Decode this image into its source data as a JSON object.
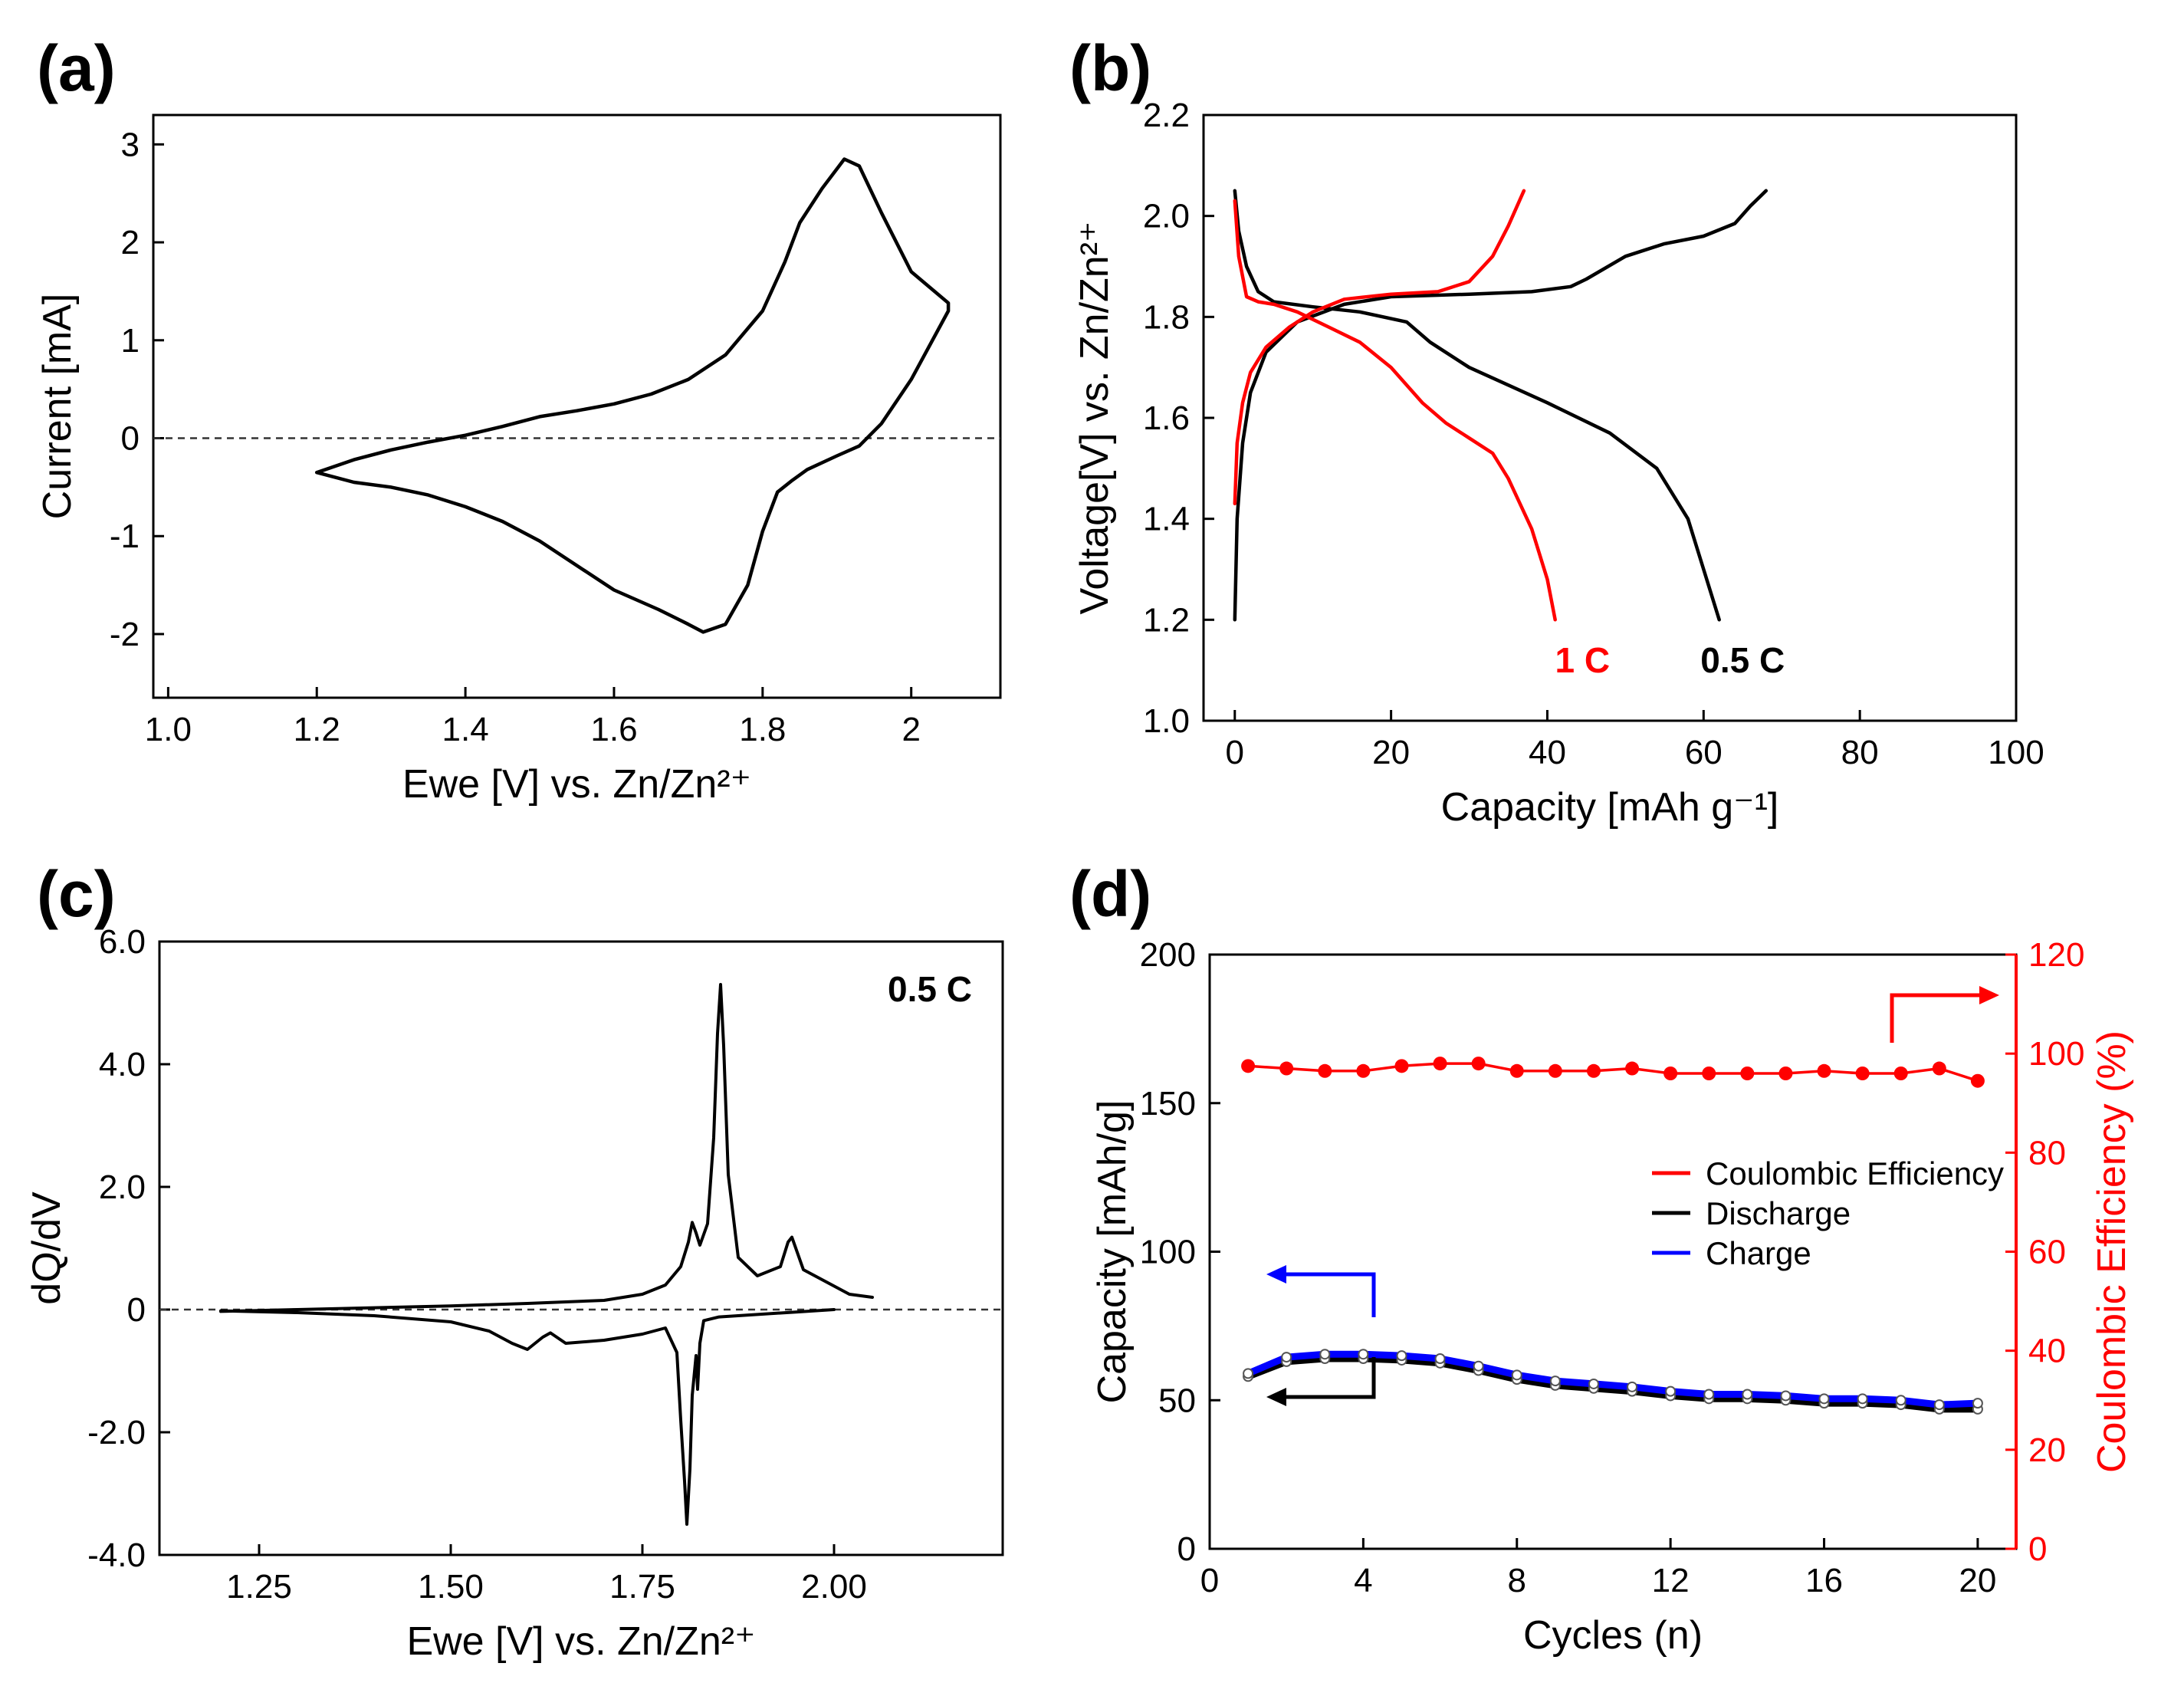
{
  "colors": {
    "black": "#000000",
    "red": "#ff0000",
    "blue": "#0000ff",
    "grid_zero": "#333333"
  },
  "panels": {
    "a": {
      "label": "(a)"
    },
    "b": {
      "label": "(b)"
    },
    "c": {
      "label": "(c)"
    },
    "d": {
      "label": "(d)"
    }
  },
  "chart_data": [
    {
      "id": "a",
      "type": "line",
      "xlabel": "Ewe [V] vs. Zn/Zn²⁺",
      "ylabel": "Current   [mA]",
      "xlim": [
        0.98,
        2.12
      ],
      "ylim": [
        -2.65,
        3.3
      ],
      "xticks": [
        1.0,
        1.2,
        1.4,
        1.6,
        1.8,
        2.0
      ],
      "xtick_labels": [
        "1.0",
        "1.2",
        "1.4",
        "1.6",
        "1.8",
        "2"
      ],
      "yticks": [
        -2,
        -1,
        0,
        1,
        2,
        3
      ],
      "ytick_labels": [
        "-2",
        "-1",
        "0",
        "1",
        "2",
        "3"
      ],
      "zero_line": true,
      "series": [
        {
          "color": "black",
          "x": [
            1.2,
            1.25,
            1.3,
            1.35,
            1.4,
            1.45,
            1.5,
            1.55,
            1.6,
            1.65,
            1.7,
            1.75,
            1.8,
            1.83,
            1.85,
            1.88,
            1.91,
            1.93,
            1.96,
            2.0,
            2.05,
            2.05,
            2.0,
            1.96,
            1.93,
            1.9,
            1.86,
            1.84,
            1.82,
            1.8,
            1.78,
            1.75,
            1.72,
            1.7,
            1.66,
            1.6,
            1.55,
            1.5,
            1.45,
            1.4,
            1.35,
            1.3,
            1.25,
            1.2
          ],
          "y": [
            -0.35,
            -0.22,
            -0.12,
            -0.04,
            0.03,
            0.12,
            0.22,
            0.28,
            0.35,
            0.45,
            0.6,
            0.85,
            1.3,
            1.8,
            2.2,
            2.55,
            2.85,
            2.78,
            2.3,
            1.7,
            1.38,
            1.3,
            0.6,
            0.15,
            -0.08,
            -0.18,
            -0.32,
            -0.43,
            -0.55,
            -0.95,
            -1.5,
            -1.9,
            -1.98,
            -1.9,
            -1.75,
            -1.55,
            -1.3,
            -1.05,
            -0.85,
            -0.7,
            -0.58,
            -0.5,
            -0.45,
            -0.35
          ]
        }
      ]
    },
    {
      "id": "b",
      "type": "line",
      "xlabel": "Capacity [mAh g⁻¹]",
      "ylabel": "Voltage[V]  vs. Zn/Zn²⁺",
      "xlim": [
        -4,
        100
      ],
      "ylim": [
        1.0,
        2.2
      ],
      "xticks": [
        0,
        20,
        40,
        60,
        80,
        100
      ],
      "xtick_labels": [
        "0",
        "20",
        "40",
        "60",
        "80",
        "100"
      ],
      "yticks": [
        1.0,
        1.2,
        1.4,
        1.6,
        1.8,
        2.0,
        2.2
      ],
      "ytick_labels": [
        "1.0",
        "1.2",
        "1.4",
        "1.6",
        "1.8",
        "2.0",
        "2.2"
      ],
      "series": [
        {
          "name": "0.5 C",
          "color": "black",
          "x": [
            0,
            0.3,
            1,
            2,
            4,
            8,
            14,
            20,
            30,
            38,
            43,
            45,
            50,
            55,
            60,
            64,
            66,
            68
          ],
          "y": [
            1.2,
            1.4,
            1.55,
            1.65,
            1.73,
            1.79,
            1.825,
            1.84,
            1.845,
            1.85,
            1.86,
            1.875,
            1.92,
            1.945,
            1.96,
            1.985,
            2.02,
            2.05
          ]
        },
        {
          "name": "0.5 C",
          "color": "black",
          "x": [
            0,
            0.5,
            1.5,
            3,
            5,
            10,
            16,
            22,
            25,
            30,
            40,
            48,
            54,
            58,
            60,
            62
          ],
          "y": [
            2.05,
            1.97,
            1.9,
            1.85,
            1.83,
            1.82,
            1.81,
            1.79,
            1.75,
            1.7,
            1.63,
            1.57,
            1.5,
            1.4,
            1.3,
            1.2
          ]
        },
        {
          "name": "1 C",
          "color": "red",
          "x": [
            0,
            0.3,
            1,
            2,
            4,
            7,
            10,
            14,
            20,
            26,
            30,
            33,
            35,
            37
          ],
          "y": [
            1.43,
            1.55,
            1.63,
            1.69,
            1.74,
            1.78,
            1.81,
            1.835,
            1.845,
            1.85,
            1.87,
            1.92,
            1.98,
            2.05
          ]
        },
        {
          "name": "1 C",
          "color": "red",
          "x": [
            0,
            0.5,
            1.5,
            3,
            5,
            8,
            12,
            16,
            20,
            24,
            27,
            30,
            33,
            35,
            38,
            40,
            41
          ],
          "y": [
            2.03,
            1.92,
            1.84,
            1.83,
            1.825,
            1.81,
            1.78,
            1.75,
            1.7,
            1.63,
            1.59,
            1.56,
            1.53,
            1.48,
            1.38,
            1.28,
            1.2
          ]
        }
      ],
      "annotations": [
        {
          "text": "1 C",
          "color": "red",
          "x": 44.5,
          "y": 1.12
        },
        {
          "text": "0.5 C",
          "color": "black",
          "x": 65,
          "y": 1.12
        }
      ]
    },
    {
      "id": "c",
      "type": "line",
      "xlabel": "Ewe [V] vs. Zn/Zn²⁺",
      "ylabel": "dQ/dV",
      "xlim": [
        1.12,
        2.22
      ],
      "ylim": [
        -4.0,
        6.0
      ],
      "xticks": [
        1.25,
        1.5,
        1.75,
        2.0
      ],
      "xtick_labels": [
        "1.25",
        "1.50",
        "1.75",
        "2.00"
      ],
      "yticks": [
        -4,
        -2,
        0,
        2,
        4,
        6
      ],
      "ytick_labels": [
        "-4.0",
        "-2.0",
        "0",
        "2.0",
        "4.0",
        "6.0"
      ],
      "zero_line": true,
      "series": [
        {
          "color": "black",
          "x": [
            1.2,
            1.3,
            1.4,
            1.5,
            1.6,
            1.7,
            1.75,
            1.78,
            1.8,
            1.81,
            1.815,
            1.82,
            1.825,
            1.835,
            1.843,
            1.848,
            1.852,
            1.856,
            1.862,
            1.875,
            1.9,
            1.93,
            1.94,
            1.945,
            1.96,
            1.99,
            2.02,
            2.05
          ],
          "y": [
            -0.03,
            0.0,
            0.03,
            0.06,
            0.1,
            0.15,
            0.25,
            0.4,
            0.7,
            1.1,
            1.42,
            1.25,
            1.05,
            1.4,
            2.8,
            4.5,
            5.3,
            4.3,
            2.2,
            0.85,
            0.55,
            0.7,
            1.1,
            1.18,
            0.65,
            0.45,
            0.25,
            0.2
          ]
        },
        {
          "color": "black",
          "x": [
            1.2,
            1.3,
            1.4,
            1.5,
            1.55,
            1.58,
            1.6,
            1.62,
            1.63,
            1.65,
            1.7,
            1.75,
            1.78,
            1.795,
            1.8,
            1.805,
            1.808,
            1.812,
            1.815,
            1.82,
            1.822,
            1.825,
            1.83,
            1.85,
            1.9,
            1.95,
            2.0
          ],
          "y": [
            -0.02,
            -0.05,
            -0.1,
            -0.2,
            -0.35,
            -0.55,
            -0.65,
            -0.45,
            -0.38,
            -0.55,
            -0.5,
            -0.4,
            -0.3,
            -0.7,
            -1.8,
            -2.8,
            -3.5,
            -2.6,
            -1.4,
            -0.75,
            -1.3,
            -0.55,
            -0.18,
            -0.12,
            -0.08,
            -0.04,
            0.0
          ]
        }
      ],
      "annotations": [
        {
          "text": "0.5 C",
          "color": "black",
          "x": 2.15,
          "y": 5.4
        }
      ]
    },
    {
      "id": "d",
      "type": "line",
      "xlabel": "Cycles (n)",
      "ylabel": "Capacity [mAh/g]",
      "ylabel_right": "Coulombic Efficiency (%)",
      "xlim": [
        0,
        21
      ],
      "ylim": [
        0,
        200
      ],
      "ylim_right": [
        0,
        120
      ],
      "xticks": [
        0,
        4,
        8,
        12,
        16,
        20
      ],
      "xtick_labels": [
        "0",
        "4",
        "8",
        "12",
        "16",
        "20"
      ],
      "yticks": [
        0,
        50,
        100,
        150,
        200
      ],
      "ytick_labels": [
        "0",
        "50",
        "100",
        "150",
        "200"
      ],
      "yticks_right": [
        0,
        20,
        40,
        60,
        80,
        100,
        120
      ],
      "ytick_labels_right": [
        "0",
        "20",
        "40",
        "60",
        "80",
        "100",
        "120"
      ],
      "legend_position": "center-right",
      "x": [
        1,
        2,
        3,
        4,
        5,
        6,
        7,
        8,
        9,
        10,
        11,
        12,
        13,
        14,
        15,
        16,
        17,
        18,
        19,
        20
      ],
      "series": [
        {
          "name": "Coulombic Efficiency",
          "color": "red",
          "axis": "right",
          "values": [
            97.5,
            97,
            96.5,
            96.5,
            97.5,
            98,
            98,
            96.5,
            96.5,
            96.5,
            97,
            96,
            96,
            96,
            96,
            96.5,
            96,
            96,
            97,
            94.5
          ]
        },
        {
          "name": "Discharge",
          "color": "black",
          "axis": "left",
          "values": [
            58,
            63,
            64,
            64,
            63.5,
            62.5,
            60,
            57,
            55,
            54,
            53,
            51.5,
            50.5,
            50.5,
            50,
            49,
            49,
            48.5,
            47,
            47
          ]
        },
        {
          "name": "Charge",
          "color": "blue",
          "axis": "left",
          "values": [
            59,
            64.5,
            65.5,
            65.5,
            65,
            64,
            61.5,
            58.5,
            56.5,
            55.5,
            54.5,
            53,
            52,
            52,
            51.5,
            50.5,
            50.5,
            50,
            48.5,
            49
          ]
        }
      ]
    }
  ]
}
